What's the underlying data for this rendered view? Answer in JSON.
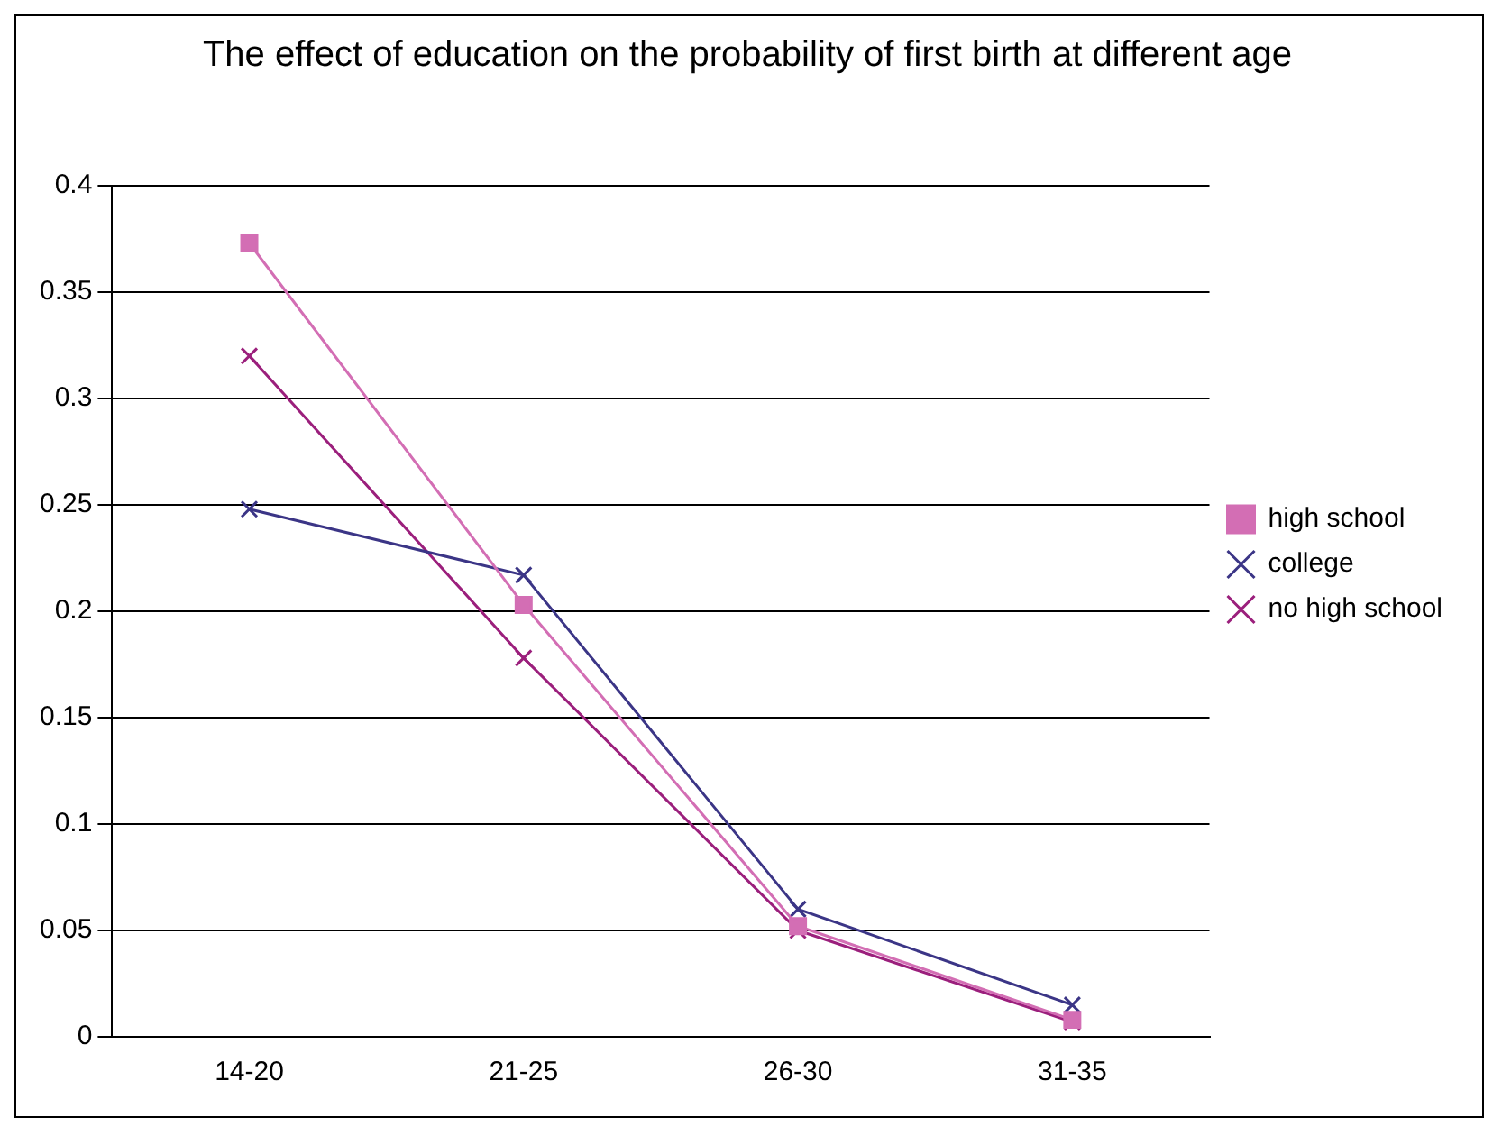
{
  "chart_data": {
    "type": "line",
    "title": "The effect of education on the probability of first birth at different age",
    "categories": [
      "14-20",
      "21-25",
      "26-30",
      "31-35"
    ],
    "series": [
      {
        "name": "high school",
        "color": "#d36eb4",
        "marker": "square",
        "values": [
          0.373,
          0.203,
          0.052,
          0.008
        ]
      },
      {
        "name": "college",
        "color": "#3b3586",
        "marker": "cross",
        "values": [
          0.248,
          0.217,
          0.06,
          0.015
        ]
      },
      {
        "name": "no high school",
        "color": "#9b1f7c",
        "marker": "cross",
        "values": [
          0.32,
          0.178,
          0.05,
          0.007
        ]
      }
    ],
    "ylim": [
      0,
      0.4
    ],
    "yticks": [
      0,
      0.05,
      0.1,
      0.15,
      0.2,
      0.25,
      0.3,
      0.35,
      0.4
    ],
    "grid": "y",
    "legend": "right"
  }
}
